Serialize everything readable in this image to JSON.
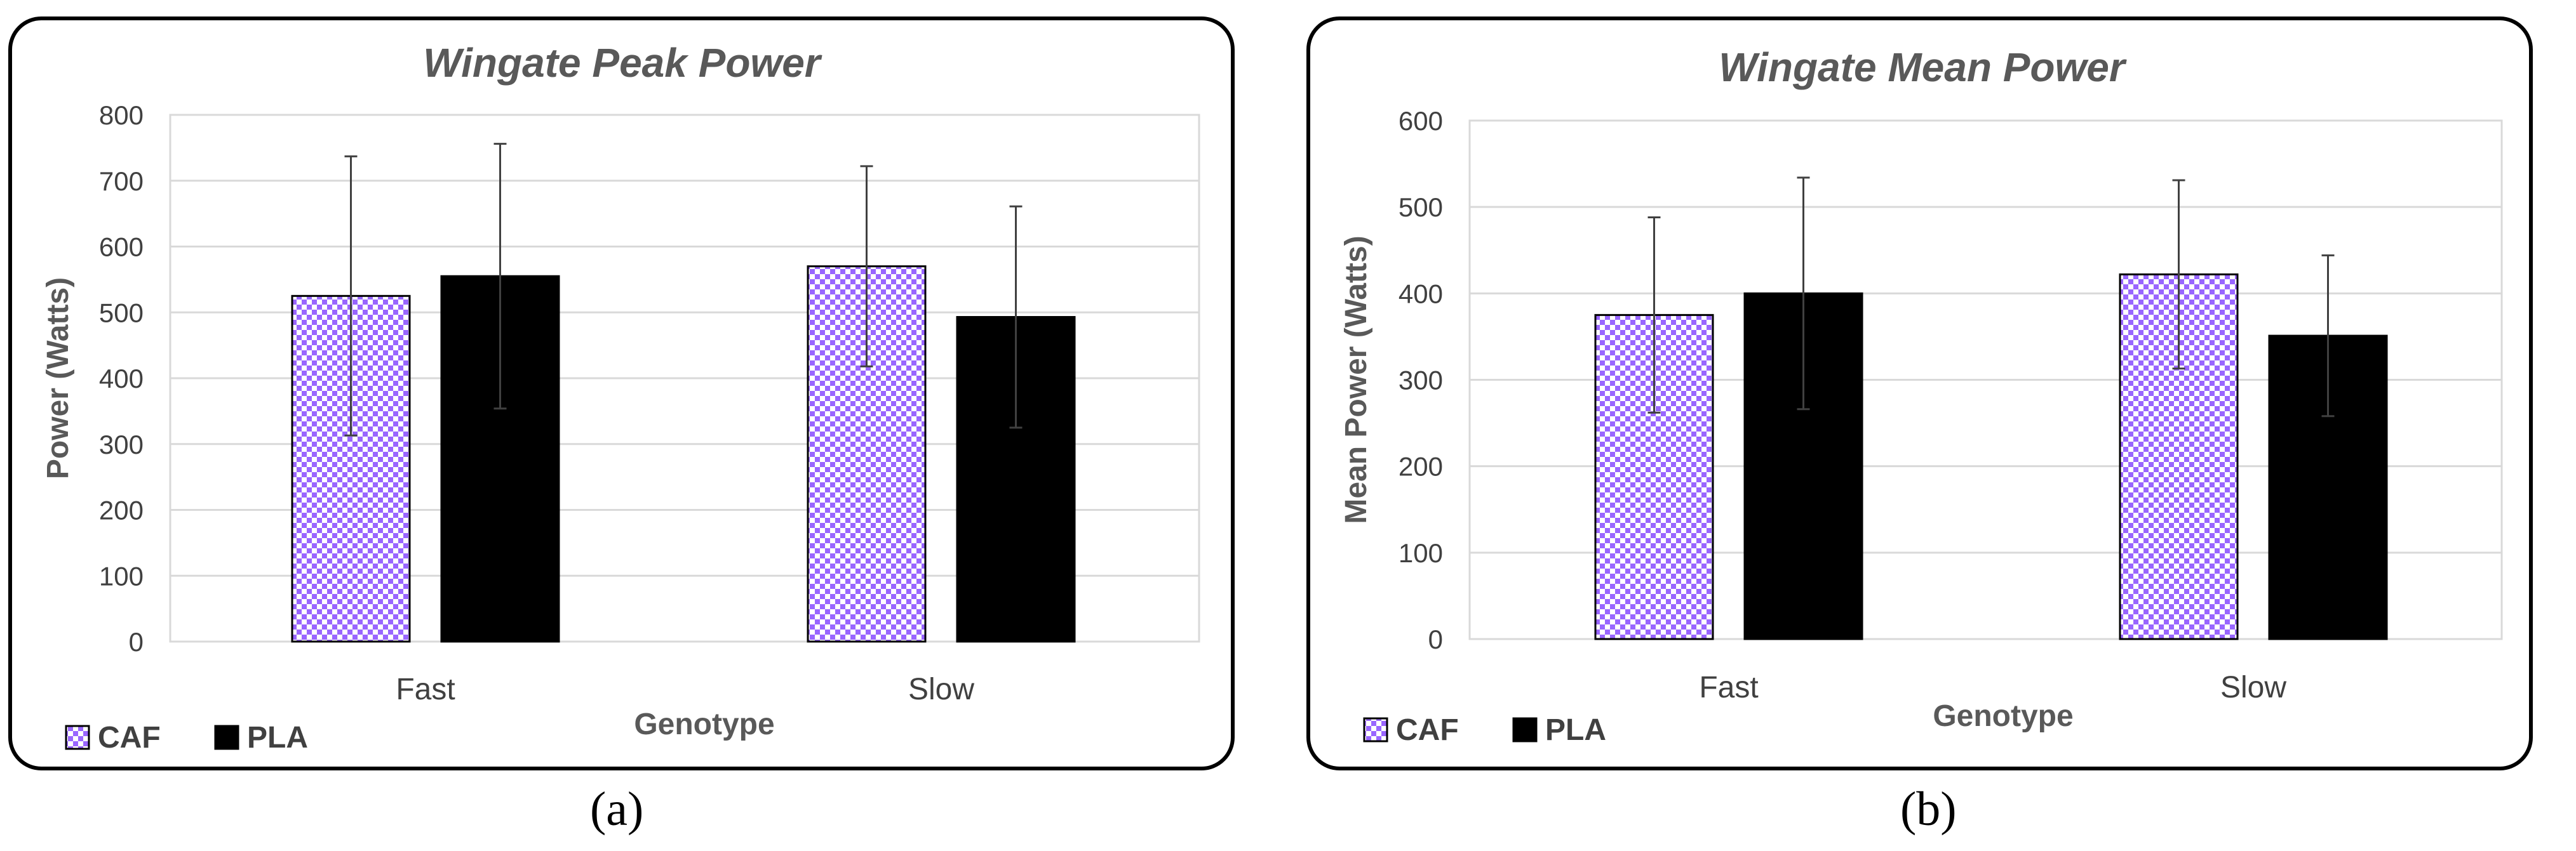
{
  "figure": {
    "panel_a_label": "(a)",
    "panel_b_label": "(b)"
  },
  "colors": {
    "caf_fill_light": "#ffffff",
    "caf_fill_dark": "#9966ff",
    "pla_fill": "#000000",
    "grid": "#d9d9d9",
    "axis_text": "#404040",
    "title_text": "#595959",
    "error_bar": "#404040"
  },
  "chart_data": [
    {
      "type": "bar",
      "title": "Wingate Peak Power",
      "xlabel": "Genotype",
      "ylabel": "Power (Watts)",
      "ylim": [
        0,
        800
      ],
      "ytick_step": 100,
      "grid": true,
      "legend_position": "bottom-left",
      "categories": [
        "Fast",
        "Slow"
      ],
      "series": [
        {
          "name": "CAF",
          "pattern": "checker",
          "values": [
            525,
            570
          ],
          "error": [
            212,
            152
          ]
        },
        {
          "name": "PLA",
          "pattern": "solid",
          "values": [
            555,
            493
          ],
          "error": [
            201,
            168
          ]
        }
      ]
    },
    {
      "type": "bar",
      "title": "Wingate Mean Power",
      "xlabel": "Genotype",
      "ylabel": "Mean Power (Watts)",
      "ylim": [
        0,
        600
      ],
      "ytick_step": 100,
      "grid": true,
      "legend_position": "bottom-left",
      "categories": [
        "Fast",
        "Slow"
      ],
      "series": [
        {
          "name": "CAF",
          "pattern": "checker",
          "values": [
            375,
            422
          ],
          "error": [
            113,
            109
          ]
        },
        {
          "name": "PLA",
          "pattern": "solid",
          "values": [
            400,
            351
          ],
          "error": [
            134,
            93
          ]
        }
      ]
    }
  ]
}
